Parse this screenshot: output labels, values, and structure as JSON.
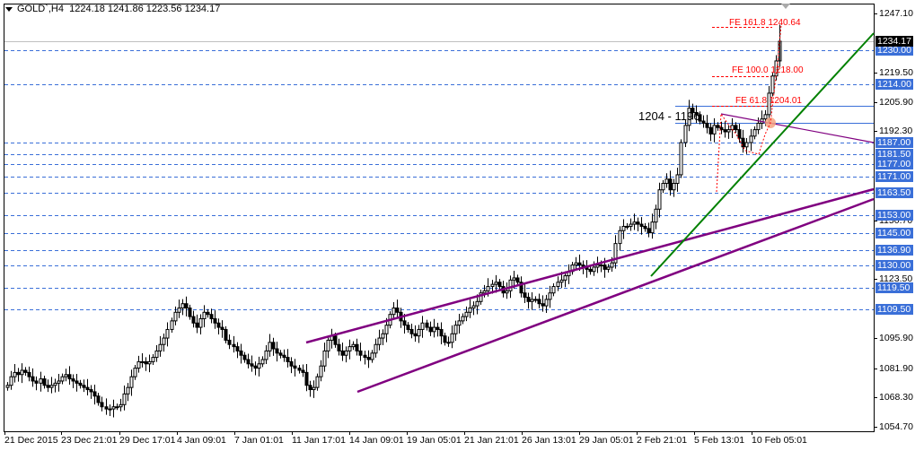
{
  "header": {
    "symbol": "GOLD`,H4",
    "open": "1224.18",
    "high": "1241.86",
    "low": "1223.56",
    "close": "1234.17",
    "menu_icon": "triangle-down-icon"
  },
  "price_axis": {
    "ticks": [
      "1247.10",
      "1219.50",
      "1205.90",
      "1192.30",
      "1150.70",
      "1123.50",
      "1095.90",
      "1081.90",
      "1068.30",
      "1054.70"
    ],
    "current_price": "1234.17"
  },
  "level_tags": [
    "1230.00",
    "1214.00",
    "1187.00",
    "1181.50",
    "1177.00",
    "1171.00",
    "1163.50",
    "1153.00",
    "1145.00",
    "1136.90",
    "1130.00",
    "1119.50",
    "1109.50"
  ],
  "time_axis": {
    "labels": [
      "21 Dec 2015",
      "23 Dec 21:01",
      "29 Dec 17:01",
      "4 Jan 09:01",
      "7 Jan 01:01",
      "11 Jan 17:01",
      "14 Jan 09:01",
      "19 Jan 05:01",
      "21 Jan 21:01",
      "26 Jan 13:01",
      "29 Jan 05:01",
      "2 Feb 21:01",
      "5 Feb 13:01",
      "10 Feb 05:01"
    ]
  },
  "annotations": {
    "fe_161": "FE 161.8 1240.64",
    "fe_100": "FE 100.0 1218.00",
    "fe_61": "FE 61.8 1204.01",
    "zone": "1204 - 1196"
  },
  "colors": {
    "level_line": "#3a6fd8",
    "channel": "#800080",
    "trendline": "#008000",
    "fibo": "#ff0000",
    "tag_bg": "#3a6fd8",
    "highlight": "#f4a582"
  },
  "chart_data": {
    "type": "candlestick",
    "title": "GOLD`,H4",
    "ohlc_last": {
      "open": 1224.18,
      "high": 1241.86,
      "low": 1223.56,
      "close": 1234.17
    },
    "ylim": [
      1054.7,
      1247.1
    ],
    "y_ticks": [
      1247.1,
      1219.5,
      1205.9,
      1192.3,
      1150.7,
      1123.5,
      1095.9,
      1081.9,
      1068.3,
      1054.7
    ],
    "x_tick_labels": [
      "21 Dec 2015",
      "23 Dec 21:01",
      "29 Dec 17:01",
      "4 Jan 09:01",
      "7 Jan 01:01",
      "11 Jan 17:01",
      "14 Jan 09:01",
      "19 Jan 05:01",
      "21 Jan 21:01",
      "26 Jan 13:01",
      "29 Jan 05:01",
      "2 Feb 21:01",
      "5 Feb 13:01",
      "10 Feb 05:01"
    ],
    "horizontal_levels": [
      1230.0,
      1214.0,
      1187.0,
      1181.5,
      1177.0,
      1171.0,
      1163.5,
      1153.0,
      1145.0,
      1136.9,
      1130.0,
      1119.5,
      1109.5
    ],
    "zone_levels": [
      1204,
      1196
    ],
    "fibo_expansion": [
      {
        "level": "161.8",
        "price": 1240.64
      },
      {
        "level": "100.0",
        "price": 1218.0
      },
      {
        "level": "61.8",
        "price": 1204.01
      }
    ],
    "closes_approx": [
      1074,
      1078,
      1080,
      1079,
      1081,
      1080,
      1078,
      1076,
      1075,
      1077,
      1074,
      1073,
      1074,
      1075,
      1076,
      1078,
      1079,
      1077,
      1076,
      1075,
      1074,
      1073,
      1072,
      1071,
      1069,
      1066,
      1064,
      1063,
      1063,
      1064,
      1064,
      1065,
      1070,
      1073,
      1078,
      1082,
      1085,
      1085,
      1084,
      1085,
      1087,
      1090,
      1093,
      1096,
      1100,
      1104,
      1108,
      1110,
      1112,
      1110,
      1106,
      1103,
      1101,
      1105,
      1108,
      1107,
      1105,
      1103,
      1101,
      1100,
      1095,
      1093,
      1092,
      1090,
      1088,
      1086,
      1084,
      1083,
      1082,
      1084,
      1086,
      1090,
      1094,
      1091,
      1089,
      1088,
      1087,
      1085,
      1083,
      1082,
      1081,
      1080,
      1074,
      1072,
      1073,
      1078,
      1083,
      1090,
      1095,
      1097,
      1093,
      1090,
      1088,
      1090,
      1092,
      1093,
      1090,
      1088,
      1087,
      1086,
      1089,
      1093,
      1096,
      1098,
      1102,
      1107,
      1110,
      1108,
      1104,
      1102,
      1100,
      1098,
      1097,
      1100,
      1103,
      1101,
      1099,
      1101,
      1100,
      1097,
      1094,
      1094,
      1098,
      1102,
      1104,
      1106,
      1108,
      1110,
      1111,
      1113,
      1117,
      1118,
      1120,
      1121,
      1122,
      1120,
      1117,
      1118,
      1123,
      1124,
      1122,
      1117,
      1115,
      1113,
      1114,
      1114,
      1112,
      1111,
      1114,
      1117,
      1120,
      1122,
      1123,
      1125,
      1127,
      1130,
      1131,
      1130,
      1129,
      1128,
      1127,
      1129,
      1130,
      1130,
      1128,
      1129,
      1131,
      1140,
      1146,
      1148,
      1148,
      1149,
      1150,
      1149,
      1148,
      1147,
      1145,
      1150,
      1156,
      1165,
      1168,
      1170,
      1165,
      1168,
      1172,
      1187,
      1195,
      1203,
      1201,
      1200,
      1197,
      1196,
      1194,
      1191,
      1195,
      1194,
      1193,
      1192,
      1193,
      1195,
      1193,
      1189,
      1185,
      1187,
      1190,
      1193,
      1196,
      1198,
      1200,
      1210,
      1218,
      1225,
      1234.17
    ]
  }
}
